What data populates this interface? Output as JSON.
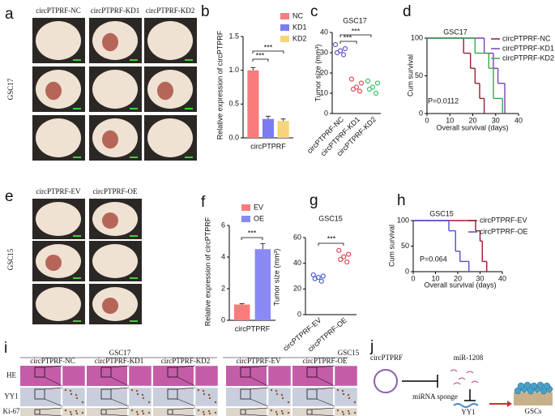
{
  "figure": {
    "panel_letters": [
      "a",
      "b",
      "c",
      "d",
      "e",
      "f",
      "g",
      "h",
      "i",
      "j"
    ],
    "panel_a": {
      "columns": [
        "circPTPRF-NC",
        "circPTPRF-KD1",
        "circPTPRF-KD2"
      ],
      "row_label": "GSC17"
    },
    "panel_e": {
      "columns": [
        "circPTPRF-EV",
        "circPTPRF-OE"
      ],
      "row_label": "GSC15"
    },
    "panel_i": {
      "groups": [
        "GSC17",
        "GSC15"
      ],
      "columns": [
        "circPTPRF-NC",
        "circPTPRF-KD1",
        "circPTPRF-KD2",
        "circPTPRF-EV",
        "circPTPRF-OE"
      ],
      "rows": [
        "HE",
        "YY1",
        "Ki-67"
      ]
    },
    "panel_j": {
      "circrna": "circPTPRF",
      "mirna": "miR-1208",
      "sponge": "miRNA sponge",
      "target": "YY1",
      "cells": "GSCs"
    }
  },
  "chart_data": [
    {
      "type": "bar",
      "ylabel": "Relative expression of circPTPRF",
      "categories": [
        "circPTPRF"
      ],
      "series": [
        {
          "name": "NC",
          "color": "#f87c7c",
          "values": [
            1.0
          ],
          "errors": [
            0.04
          ]
        },
        {
          "name": "KD1",
          "color": "#7c7cf2",
          "values": [
            0.28
          ],
          "errors": [
            0.04
          ]
        },
        {
          "name": "KD2",
          "color": "#f7d47c",
          "values": [
            0.25
          ],
          "errors": [
            0.03
          ]
        }
      ],
      "ylim": [
        0,
        1.5
      ],
      "yticks": [
        {
          "value": 0,
          "label": "0.0"
        },
        {
          "value": 0.5,
          "label": "0.5"
        },
        {
          "value": 1,
          "label": "1.0"
        },
        {
          "value": 1.5,
          "label": "1.5"
        }
      ],
      "annotations": [
        "***",
        "***"
      ]
    },
    {
      "type": "dot",
      "title": "GSC17",
      "ylabel": "Tumor size (mm³)",
      "categories": [
        "circPTPRF-NC",
        "circPTPRF-KD1",
        "circPTPRF-KD2"
      ],
      "colors": [
        "#6a5acd",
        "#e0525e",
        "#3cc46c"
      ],
      "values": [
        [
          34,
          32,
          31,
          30,
          29
        ],
        [
          17,
          15,
          13,
          12,
          11
        ],
        [
          16,
          15,
          13,
          12,
          10
        ]
      ],
      "ylim": [
        0,
        40
      ],
      "yticks": [
        0,
        10,
        20,
        30,
        40
      ],
      "annotations": [
        "***",
        "***"
      ]
    },
    {
      "type": "survival",
      "title": "GSC17",
      "xlabel": "Overall  survival (days)",
      "ylabel": "Cum survival",
      "annotation": "P=0.0112",
      "xlim": [
        0,
        40
      ],
      "xticks": [
        0,
        10,
        20,
        30,
        40
      ],
      "ylim": [
        0,
        100
      ],
      "yticks": [
        0,
        50,
        100
      ],
      "series": [
        {
          "name": "circPTPRF-NC",
          "color": "#9b1b30",
          "x": [
            0,
            16,
            19,
            21,
            23,
            25
          ],
          "values": [
            100,
            80,
            60,
            40,
            20,
            0
          ]
        },
        {
          "name": "circPTPRF-KD1",
          "color": "#7b3fbf",
          "x": [
            0,
            25,
            29,
            31,
            34
          ],
          "values": [
            100,
            80,
            60,
            40,
            0
          ]
        },
        {
          "name": "circPTPRF-KD2",
          "color": "#3aa84a",
          "x": [
            0,
            21,
            27,
            29,
            33
          ],
          "values": [
            100,
            80,
            60,
            20,
            0
          ]
        }
      ]
    },
    {
      "type": "bar",
      "ylabel": "Relative expression of circPTPRF",
      "categories": [
        "circPTPRF"
      ],
      "series": [
        {
          "name": "EV",
          "color": "#f87c7c",
          "values": [
            1.0
          ],
          "errors": [
            0.05
          ]
        },
        {
          "name": "OE",
          "color": "#8a8af5",
          "values": [
            4.5
          ],
          "errors": [
            0.35
          ]
        }
      ],
      "ylim": [
        0,
        6
      ],
      "yticks": [
        0,
        2,
        4,
        6
      ],
      "annotations": [
        "***"
      ]
    },
    {
      "type": "dot",
      "title": "GSC15",
      "ylabel": "Tumor size (mm³)",
      "categories": [
        "circPTPRF-EV",
        "circPTPRF-OE"
      ],
      "colors": [
        "#4a5fd0",
        "#e04050"
      ],
      "values": [
        [
          31,
          30,
          29,
          28,
          26
        ],
        [
          50,
          47,
          45,
          43,
          41
        ]
      ],
      "ylim": [
        0,
        60
      ],
      "yticks": [
        0,
        20,
        40,
        60
      ],
      "annotations": [
        "***"
      ]
    },
    {
      "type": "survival",
      "title": "GSC15",
      "xlabel": "Overall  survival (days)",
      "ylabel": "Cum survival",
      "annotation": "P=0.064",
      "xlim": [
        0,
        40
      ],
      "xticks": [
        0,
        10,
        20,
        30,
        40
      ],
      "ylim": [
        0,
        100
      ],
      "yticks": [
        0,
        50,
        100
      ],
      "series": [
        {
          "name": "circPTPRF-EV",
          "color": "#9b1b30",
          "x": [
            0,
            28,
            30,
            31,
            33
          ],
          "values": [
            100,
            80,
            60,
            20,
            0
          ]
        },
        {
          "name": "circPTPRF-OE",
          "color": "#5050d0",
          "x": [
            0,
            16,
            19,
            21,
            25
          ],
          "values": [
            100,
            80,
            40,
            20,
            0
          ]
        }
      ]
    }
  ]
}
